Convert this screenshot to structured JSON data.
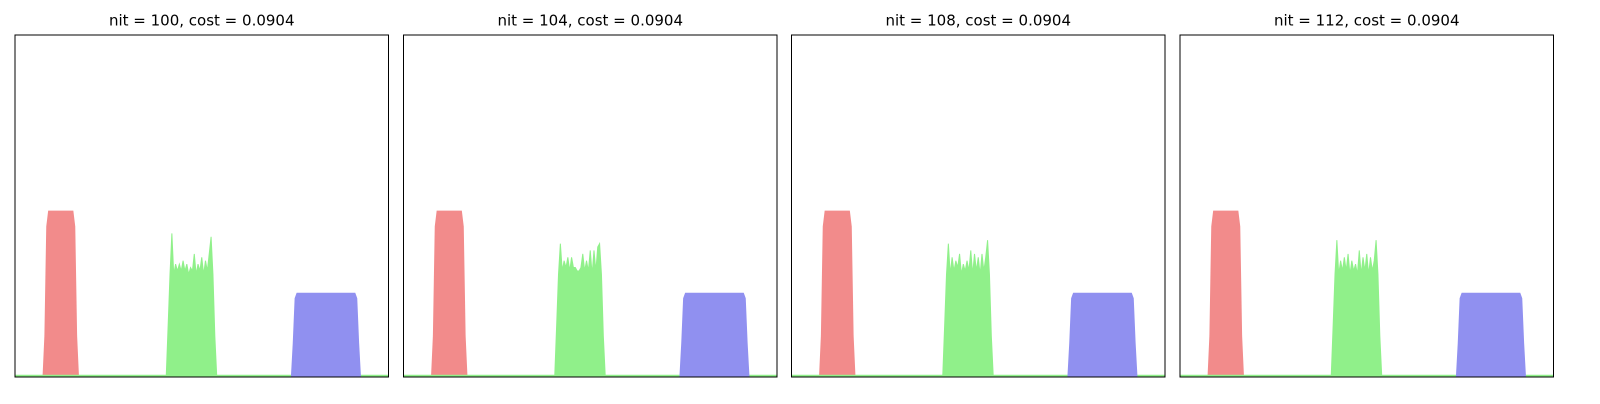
{
  "chart_data": [
    {
      "type": "area",
      "title": "nit = 100, cost = 0.0904",
      "xlim": [
        0,
        1
      ],
      "ylim": [
        0,
        1
      ],
      "series": [
        {
          "color": "#f28b8b",
          "x": [
            0,
            0.075,
            0.08,
            0.085,
            0.09,
            0.155,
            0.16,
            0.165,
            0.17,
            1
          ],
          "values": [
            0,
            0,
            0.12,
            0.44,
            0.485,
            0.485,
            0.44,
            0.12,
            0,
            0
          ]
        },
        {
          "color": "#90f08a",
          "x": [
            0,
            0.405,
            0.41,
            0.415,
            0.42,
            0.425,
            0.43,
            0.435,
            0.44,
            0.445,
            0.45,
            0.455,
            0.46,
            0.465,
            0.47,
            0.475,
            0.48,
            0.485,
            0.49,
            0.495,
            0.5,
            0.505,
            0.51,
            0.515,
            0.52,
            0.525,
            0.53,
            0.535,
            0.54,
            1
          ],
          "values": [
            0.005,
            0.005,
            0.15,
            0.3,
            0.42,
            0.3,
            0.33,
            0.31,
            0.33,
            0.31,
            0.34,
            0.31,
            0.33,
            0.3,
            0.32,
            0.31,
            0.36,
            0.3,
            0.33,
            0.31,
            0.35,
            0.3,
            0.34,
            0.31,
            0.36,
            0.41,
            0.3,
            0.12,
            0.005,
            0.005
          ]
        },
        {
          "color": "#9090f0",
          "x": [
            0,
            0.74,
            0.745,
            0.75,
            0.755,
            0.91,
            0.915,
            0.92,
            0.925,
            1
          ],
          "values": [
            0,
            0,
            0.1,
            0.23,
            0.245,
            0.245,
            0.23,
            0.1,
            0,
            0
          ]
        }
      ]
    },
    {
      "type": "area",
      "title": "nit = 104, cost = 0.0904",
      "xlim": [
        0,
        1
      ],
      "ylim": [
        0,
        1
      ],
      "series": [
        {
          "color": "#f28b8b",
          "x": [
            0,
            0.075,
            0.08,
            0.085,
            0.09,
            0.155,
            0.16,
            0.165,
            0.17,
            1
          ],
          "values": [
            0,
            0,
            0.12,
            0.44,
            0.485,
            0.485,
            0.44,
            0.12,
            0,
            0
          ]
        },
        {
          "color": "#90f08a",
          "x": [
            0,
            0.405,
            0.41,
            0.415,
            0.42,
            0.425,
            0.43,
            0.435,
            0.44,
            0.445,
            0.45,
            0.455,
            0.46,
            0.465,
            0.47,
            0.475,
            0.48,
            0.485,
            0.49,
            0.495,
            0.5,
            0.505,
            0.51,
            0.515,
            0.52,
            0.525,
            0.53,
            0.535,
            0.54,
            1
          ],
          "values": [
            0.005,
            0.005,
            0.15,
            0.3,
            0.39,
            0.31,
            0.34,
            0.32,
            0.35,
            0.31,
            0.35,
            0.32,
            0.32,
            0.31,
            0.31,
            0.32,
            0.36,
            0.31,
            0.34,
            0.31,
            0.37,
            0.3,
            0.37,
            0.31,
            0.38,
            0.39,
            0.3,
            0.12,
            0.005,
            0.005
          ]
        },
        {
          "color": "#9090f0",
          "x": [
            0,
            0.74,
            0.745,
            0.75,
            0.755,
            0.91,
            0.915,
            0.92,
            0.925,
            1
          ],
          "values": [
            0,
            0,
            0.1,
            0.23,
            0.245,
            0.245,
            0.23,
            0.1,
            0,
            0
          ]
        }
      ]
    },
    {
      "type": "area",
      "title": "nit = 108, cost = 0.0904",
      "xlim": [
        0,
        1
      ],
      "ylim": [
        0,
        1
      ],
      "series": [
        {
          "color": "#f28b8b",
          "x": [
            0,
            0.075,
            0.08,
            0.085,
            0.09,
            0.155,
            0.16,
            0.165,
            0.17,
            1
          ],
          "values": [
            0,
            0,
            0.12,
            0.44,
            0.485,
            0.485,
            0.44,
            0.12,
            0,
            0
          ]
        },
        {
          "color": "#90f08a",
          "x": [
            0,
            0.405,
            0.41,
            0.415,
            0.42,
            0.425,
            0.43,
            0.435,
            0.44,
            0.445,
            0.45,
            0.455,
            0.46,
            0.465,
            0.47,
            0.475,
            0.48,
            0.485,
            0.49,
            0.495,
            0.5,
            0.505,
            0.51,
            0.515,
            0.52,
            0.525,
            0.53,
            0.535,
            0.54,
            1
          ],
          "values": [
            0.005,
            0.005,
            0.15,
            0.3,
            0.39,
            0.3,
            0.35,
            0.31,
            0.34,
            0.32,
            0.36,
            0.3,
            0.33,
            0.31,
            0.34,
            0.31,
            0.37,
            0.3,
            0.36,
            0.31,
            0.35,
            0.3,
            0.36,
            0.31,
            0.35,
            0.4,
            0.3,
            0.12,
            0.005,
            0.005
          ]
        },
        {
          "color": "#9090f0",
          "x": [
            0,
            0.74,
            0.745,
            0.75,
            0.755,
            0.91,
            0.915,
            0.92,
            0.925,
            1
          ],
          "values": [
            0,
            0,
            0.1,
            0.23,
            0.245,
            0.245,
            0.23,
            0.1,
            0,
            0
          ]
        }
      ]
    },
    {
      "type": "area",
      "title": "nit = 112, cost = 0.0904",
      "xlim": [
        0,
        1
      ],
      "ylim": [
        0,
        1
      ],
      "series": [
        {
          "color": "#f28b8b",
          "x": [
            0,
            0.075,
            0.08,
            0.085,
            0.09,
            0.155,
            0.16,
            0.165,
            0.17,
            1
          ],
          "values": [
            0,
            0,
            0.12,
            0.44,
            0.485,
            0.485,
            0.44,
            0.12,
            0,
            0
          ]
        },
        {
          "color": "#90f08a",
          "x": [
            0,
            0.405,
            0.41,
            0.415,
            0.42,
            0.425,
            0.43,
            0.435,
            0.44,
            0.445,
            0.45,
            0.455,
            0.46,
            0.465,
            0.47,
            0.475,
            0.48,
            0.485,
            0.49,
            0.495,
            0.5,
            0.505,
            0.51,
            0.515,
            0.52,
            0.525,
            0.53,
            0.535,
            0.54,
            1
          ],
          "values": [
            0.005,
            0.005,
            0.15,
            0.3,
            0.4,
            0.3,
            0.34,
            0.31,
            0.35,
            0.31,
            0.36,
            0.3,
            0.34,
            0.31,
            0.33,
            0.3,
            0.37,
            0.3,
            0.35,
            0.31,
            0.36,
            0.3,
            0.35,
            0.31,
            0.34,
            0.4,
            0.3,
            0.12,
            0.005,
            0.005
          ]
        },
        {
          "color": "#9090f0",
          "x": [
            0,
            0.74,
            0.745,
            0.75,
            0.755,
            0.91,
            0.915,
            0.92,
            0.925,
            1
          ],
          "values": [
            0,
            0,
            0.1,
            0.23,
            0.245,
            0.245,
            0.23,
            0.1,
            0,
            0
          ]
        }
      ]
    }
  ]
}
